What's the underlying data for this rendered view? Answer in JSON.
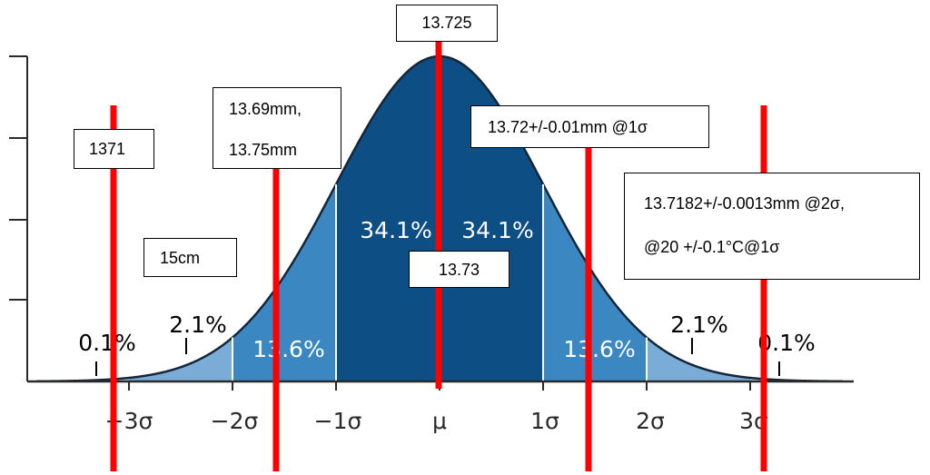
{
  "diagram": {
    "pct_center": "34.1%",
    "pct_mid": "13.6%",
    "pct_tail_inner": "2.1%",
    "pct_tail_outer": "0.1%",
    "axis_labels": [
      "−3σ",
      "−2σ",
      "−1σ",
      "μ",
      "1σ",
      "2σ",
      "3σ"
    ],
    "colors": {
      "center": "#0d4e84",
      "middle": "#3a87c2",
      "tail": "#79acd6",
      "outer": "#b9d3ea",
      "marker": "#ff0000",
      "axis": "#2a2a2a"
    }
  },
  "annotations": {
    "mean_value": "13.725",
    "left_value": "1371",
    "range_line1": "13.69mm,",
    "range_line2": "13.75mm",
    "spec_1sigma": "13.72+/-0.01mm @1σ",
    "spec_2sigma_line1": "13.7182+/-0.0013mm @2σ,",
    "spec_2sigma_line2": "@20 +/-0.1°C@1σ",
    "length": "15cm",
    "rounded_mean": "13.73"
  }
}
